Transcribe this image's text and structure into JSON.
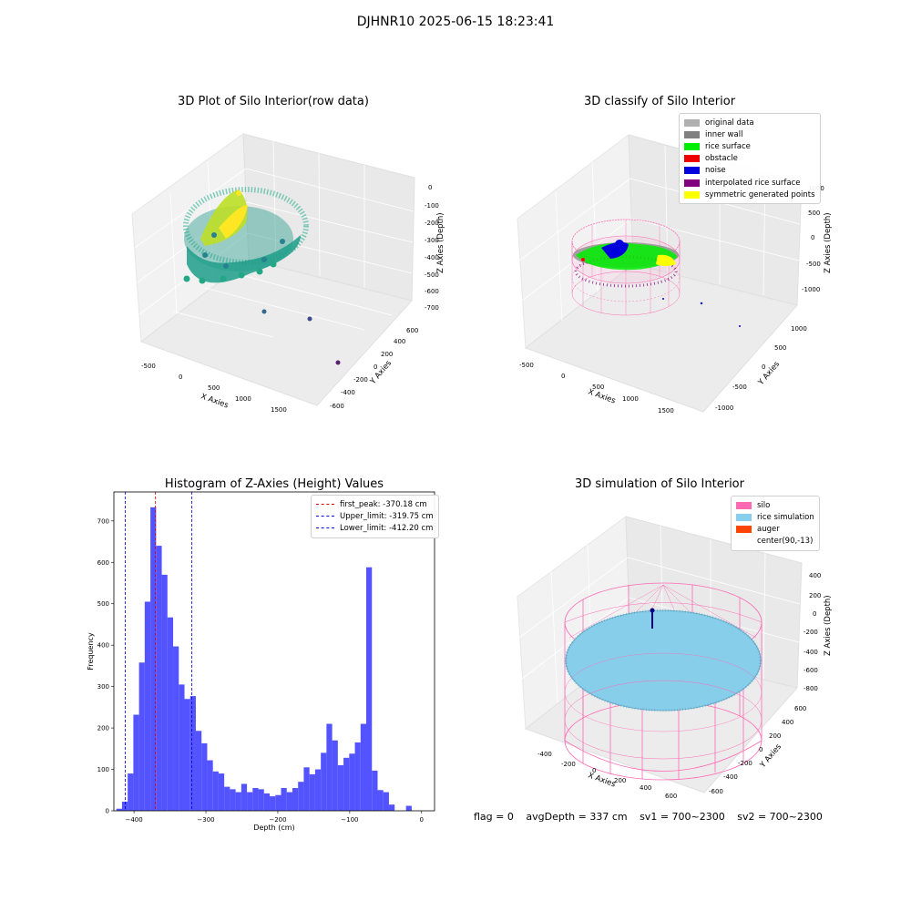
{
  "suptitle": "DJHNR10 2025-06-15 18:23:41",
  "footer": {
    "flag": "flag = 0",
    "avg_depth": "avgDepth = 337 cm",
    "sv1": "sv1 = 700~2300",
    "sv2": "sv2 = 700~2300"
  },
  "plot_tl": {
    "title": "3D Plot of Silo Interior(row data)",
    "xlabel": "X Axies",
    "ylabel": "Y Axies",
    "zlabel": "Z Axies (Depth)",
    "xticks": [
      "-500",
      "0",
      "500",
      "1000",
      "1500"
    ],
    "yticks": [
      "600",
      "400",
      "200",
      "0",
      "-200",
      "-400",
      "-600"
    ],
    "zticks": [
      "0",
      "-100",
      "-200",
      "-300",
      "-400",
      "-500",
      "-600",
      "-700"
    ]
  },
  "plot_tr": {
    "title": "3D classify of Silo Interior",
    "xlabel": "X Axies",
    "ylabel": "Y Axies",
    "zlabel": "Z Axies (Depth)",
    "xticks": [
      "-500",
      "0",
      "500",
      "1000",
      "1500"
    ],
    "yticks": [
      "1000",
      "500",
      "0",
      "-500",
      "-1000"
    ],
    "zticks": [
      "1000",
      "500",
      "0",
      "-500",
      "-1000"
    ],
    "legend": [
      {
        "label": "original data",
        "color": "#b0b0b0"
      },
      {
        "label": "inner wall",
        "color": "#808080"
      },
      {
        "label": "rice surface",
        "color": "#00ee00"
      },
      {
        "label": "obstacle",
        "color": "#ee0000"
      },
      {
        "label": "noise",
        "color": "#0000dd"
      },
      {
        "label": "interpolated rice surface",
        "color": "#800080"
      },
      {
        "label": "symmetric generated points",
        "color": "#ffff00"
      }
    ]
  },
  "plot_br": {
    "title": "3D simulation of Silo Interior",
    "xlabel": "X Axies",
    "ylabel": "Y Axies",
    "zlabel": "Z Axies (Depth)",
    "xticks": [
      "-400",
      "-200",
      "0",
      "200",
      "400",
      "600"
    ],
    "yticks": [
      "600",
      "400",
      "200",
      "0",
      "-200",
      "-400",
      "-600"
    ],
    "zticks": [
      "400",
      "200",
      "0",
      "-200",
      "-400",
      "-600",
      "-800"
    ],
    "legend": [
      {
        "label": "silo",
        "color": "#ff69b4"
      },
      {
        "label": "rice simulation",
        "color": "#87ceeb"
      },
      {
        "label": "auger",
        "color": "#ff4500"
      },
      {
        "label": "center(90,-13)",
        "color": "#ffffff"
      }
    ]
  },
  "chart_data": [
    {
      "type": "bar",
      "title": "Histogram of Z-Axies (Height) Values",
      "xlabel": "Depth (cm)",
      "ylabel": "Frequency",
      "xlim": [
        -428,
        18
      ],
      "ylim": [
        0,
        770
      ],
      "bar_color": "#4a4aff",
      "xticks": [
        -400,
        -300,
        -200,
        -100,
        0
      ],
      "xtick_labels": [
        "−400",
        "−300",
        "−200",
        "−100",
        "0"
      ],
      "yticks": [
        0,
        100,
        200,
        300,
        400,
        500,
        600,
        700
      ],
      "bin_width": 7.9,
      "bin_left_edges": [
        -424.6,
        -416.7,
        -408.8,
        -400.9,
        -393.0,
        -385.1,
        -377.2,
        -369.3,
        -361.4,
        -353.5,
        -345.6,
        -337.7,
        -329.8,
        -321.9,
        -314.0,
        -306.1,
        -298.2,
        -290.3,
        -282.4,
        -274.5,
        -266.6,
        -258.7,
        -250.8,
        -242.9,
        -235.0,
        -227.1,
        -219.2,
        -211.3,
        -203.4,
        -195.5,
        -187.6,
        -179.7,
        -171.8,
        -163.9,
        -156.0,
        -148.1,
        -140.2,
        -132.3,
        -124.4,
        -116.5,
        -108.6,
        -100.7,
        -92.8,
        -84.9,
        -77.0,
        -69.1,
        -61.2,
        -53.3,
        -45.4,
        -37.5,
        -29.6,
        -21.7,
        -13.8,
        -5.9
      ],
      "counts": [
        5,
        22,
        90,
        232,
        358,
        505,
        733,
        640,
        570,
        467,
        397,
        305,
        270,
        277,
        193,
        163,
        122,
        95,
        90,
        58,
        52,
        45,
        65,
        45,
        55,
        52,
        42,
        35,
        38,
        55,
        45,
        55,
        70,
        105,
        88,
        100,
        140,
        210,
        170,
        110,
        128,
        138,
        165,
        210,
        588,
        97,
        50,
        45,
        15,
        0,
        0,
        12,
        0,
        0
      ],
      "vlines": [
        {
          "label": "first_peak: -370.18 cm",
          "x": -370.18,
          "color": "#dd0000"
        },
        {
          "label": "Upper_limit: -319.75 cm",
          "x": -319.75,
          "color": "#0000dd"
        },
        {
          "label": "Lower_limit: -412.20 cm",
          "x": -412.2,
          "color": "#0000dd"
        }
      ]
    }
  ]
}
